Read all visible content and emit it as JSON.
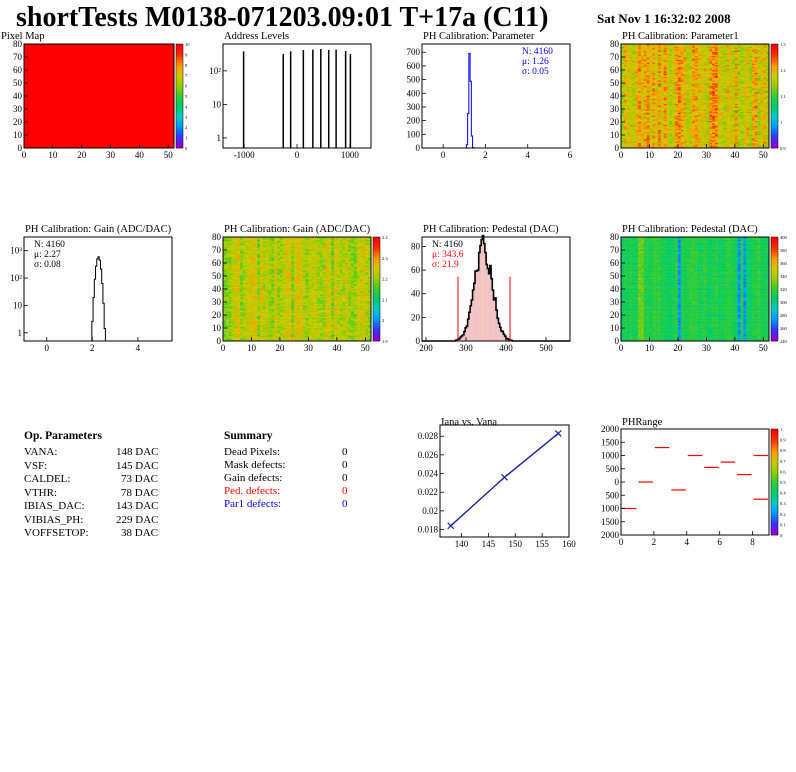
{
  "header": {
    "title": "shortTests M0138-071203.09:01 T+17a (C11)",
    "date": "Sat Nov  1 16:32:02 2008"
  },
  "colors": {
    "frame": "#000000",
    "stat_blue": "#0000ff",
    "stat_red": "#ff0000",
    "hist_fill_red": "#cc0000",
    "line_blue": "#2020a0",
    "map_red": "#ff0000"
  },
  "palette_stops": [
    "#9900cc",
    "#3333ff",
    "#0099ff",
    "#00cccc",
    "#00cc66",
    "#33cc33",
    "#99cc00",
    "#cccc00",
    "#ff9900",
    "#ff3300",
    "#ff0000"
  ],
  "chart_data": [
    {
      "id": "pixel-map",
      "type": "heatmap",
      "title": "Pixel Map",
      "x_ticks": [
        "0",
        "10",
        "20",
        "30",
        "40",
        "50"
      ],
      "y_ticks": [
        "0",
        "10",
        "20",
        "30",
        "40",
        "50",
        "60",
        "70",
        "80"
      ],
      "xlim": [
        0,
        52
      ],
      "ylim": [
        0,
        80
      ],
      "uniform_value": 10,
      "z_ticks": [
        "0",
        "1",
        "2",
        "3",
        "4",
        "5",
        "6",
        "7",
        "8",
        "9",
        "10"
      ]
    },
    {
      "id": "address-levels",
      "type": "bar",
      "title": "Address Levels",
      "x_ticks": [
        "-1000",
        "0",
        "1000"
      ],
      "y_ticks": [
        "1",
        "10",
        "10²"
      ],
      "xlim": [
        -1400,
        1400
      ],
      "log_y": true,
      "x": [
        -1010,
        -260,
        -120,
        120,
        300,
        450,
        600,
        740,
        920,
        1010
      ],
      "values": [
        380,
        320,
        380,
        420,
        430,
        450,
        420,
        430,
        390,
        320
      ]
    },
    {
      "id": "ph-parameter",
      "type": "bar",
      "title": "PH Calibration: Parameter",
      "x_ticks": [
        "0",
        "2",
        "4",
        "6"
      ],
      "y_ticks": [
        "0",
        "100",
        "200",
        "300",
        "400",
        "500",
        "600",
        "700"
      ],
      "xlim": [
        -1,
        6
      ],
      "ylim": [
        0,
        760
      ],
      "peak_center": 1.26,
      "peak_width": 0.05,
      "peak_height": 720,
      "stats": [
        "N: 4160",
        "μ: 1.26",
        "σ: 0.05"
      ]
    },
    {
      "id": "ph-parameter1",
      "type": "heatmap",
      "title": "PH Calibration: Parameter1",
      "x_ticks": [
        "0",
        "10",
        "20",
        "30",
        "40",
        "50"
      ],
      "y_ticks": [
        "0",
        "10",
        "20",
        "30",
        "40",
        "50",
        "60",
        "70",
        "80"
      ],
      "z_ticks": [
        "0.9",
        "1",
        "1.1",
        "1.2",
        "1.3"
      ],
      "xlim": [
        0,
        52
      ],
      "ylim": [
        0,
        80
      ],
      "mean": 0.72,
      "spread": 0.18
    },
    {
      "id": "ph-gain-hist",
      "type": "bar",
      "title": "PH Calibration: Gain (ADC/DAC)",
      "x_ticks": [
        "0",
        "2",
        "4"
      ],
      "y_ticks": [
        "1",
        "10",
        "10²",
        "10³"
      ],
      "xlim": [
        -1,
        5.5
      ],
      "log_y": true,
      "peak_center": 2.27,
      "peak_width": 0.08,
      "peak_height": 600,
      "stats": [
        "N: 4160",
        "μ: 2.27",
        "σ: 0.08"
      ]
    },
    {
      "id": "ph-gain-map",
      "type": "heatmap",
      "title": "PH Calibration: Gain (ADC/DAC)",
      "x_ticks": [
        "0",
        "10",
        "20",
        "30",
        "40",
        "50"
      ],
      "y_ticks": [
        "0",
        "10",
        "20",
        "30",
        "40",
        "50",
        "60",
        "70",
        "80"
      ],
      "z_ticks": [
        "1.9",
        "2",
        "2.1",
        "2.2",
        "2.3",
        "2.4"
      ],
      "xlim": [
        0,
        52
      ],
      "ylim": [
        0,
        80
      ],
      "mean": 0.65,
      "spread": 0.15
    },
    {
      "id": "ph-pedestal-hist",
      "type": "bar",
      "title": "PH Calibration: Pedestal (DAC)",
      "x_ticks": [
        "200",
        "300",
        "400",
        "500"
      ],
      "y_ticks": [
        "0",
        "20",
        "40",
        "60",
        "80"
      ],
      "xlim": [
        190,
        560
      ],
      "ylim": [
        0,
        88
      ],
      "peak_center": 343.6,
      "peak_width": 21.9,
      "peak_height": 82,
      "cut_lines": [
        280,
        410
      ],
      "stats": [
        "N: 4160",
        "μ: 343.6",
        "σ: 21.9"
      ]
    },
    {
      "id": "ph-pedestal-map",
      "type": "heatmap",
      "title": "PH Calibration: Pedestal (DAC)",
      "x_ticks": [
        "0",
        "10",
        "20",
        "30",
        "40",
        "50"
      ],
      "y_ticks": [
        "0",
        "10",
        "20",
        "30",
        "40",
        "50",
        "60",
        "70",
        "80"
      ],
      "z_ticks": [
        "240",
        "260",
        "280",
        "300",
        "320",
        "340",
        "360",
        "380",
        "400"
      ],
      "xlim": [
        0,
        52
      ],
      "ylim": [
        0,
        80
      ],
      "mean": 0.45,
      "spread": 0.08
    },
    {
      "id": "iana-vana",
      "type": "line",
      "title": "Iana vs. Vana",
      "x_ticks": [
        "140",
        "145",
        "150",
        "155",
        "160"
      ],
      "y_ticks": [
        "0.018",
        "0.02",
        "0.022",
        "0.024",
        "0.026",
        "0.028"
      ],
      "xlim": [
        136,
        160
      ],
      "ylim": [
        0.0172,
        0.0292
      ],
      "x": [
        138,
        148,
        158
      ],
      "y": [
        0.0184,
        0.0236,
        0.0283
      ]
    },
    {
      "id": "ph-range",
      "type": "heatmap",
      "title": "PHRange",
      "x_ticks": [
        "0",
        "2",
        "4",
        "6",
        "8"
      ],
      "y_ticks": [
        "2000",
        "1500",
        "1000",
        "500",
        "0",
        "-500",
        "-1000",
        "-1500",
        "-2000"
      ],
      "y_tick_labels": [
        "2000",
        "1500",
        "1000",
        "500",
        "0",
        "500",
        "1000",
        "1500",
        "2000"
      ],
      "z_ticks": [
        "0",
        "0.1",
        "0.2",
        "0.3",
        "0.4",
        "0.5",
        "0.6",
        "0.7",
        "0.8",
        "0.9",
        "1"
      ],
      "xlim": [
        0,
        9
      ],
      "ylim": [
        -2000,
        2000
      ],
      "segments": [
        {
          "x0": 0,
          "x1": 1,
          "y": -1000
        },
        {
          "x0": 1,
          "x1": 2,
          "y": 0
        },
        {
          "x0": 2,
          "x1": 3,
          "y": 1300
        },
        {
          "x0": 3,
          "x1": 4,
          "y": -300
        },
        {
          "x0": 4,
          "x1": 5,
          "y": 1000
        },
        {
          "x0": 5,
          "x1": 6,
          "y": 550
        },
        {
          "x0": 6,
          "x1": 7,
          "y": 750
        },
        {
          "x0": 7,
          "x1": 8,
          "y": 280
        },
        {
          "x0": 8,
          "x1": 9,
          "y": 1000
        },
        {
          "x0": 8,
          "x1": 9,
          "y": -650
        }
      ]
    }
  ],
  "op_parameters": {
    "title": "Op. Parameters",
    "rows": [
      {
        "name": "VANA:",
        "value": "148 DAC"
      },
      {
        "name": "VSF:",
        "value": "145 DAC"
      },
      {
        "name": "CALDEL:",
        "value": "73 DAC"
      },
      {
        "name": "VTHR:",
        "value": "78 DAC"
      },
      {
        "name": "IBIAS_DAC:",
        "value": "143 DAC"
      },
      {
        "name": "VIBIAS_PH:",
        "value": "229 DAC"
      },
      {
        "name": "VOFFSETOP:",
        "value": "38 DAC"
      }
    ]
  },
  "summary": {
    "title": "Summary",
    "rows": [
      {
        "name": "Dead Pixels:",
        "value": "0",
        "color": "#000000"
      },
      {
        "name": "Mask defects:",
        "value": "0",
        "color": "#000000"
      },
      {
        "name": "Gain defects:",
        "value": "0",
        "color": "#000000"
      },
      {
        "name": "Ped. defects:",
        "value": "0",
        "color": "#ff0000"
      },
      {
        "name": "Par1 defects:",
        "value": "0",
        "color": "#0000ff"
      }
    ]
  }
}
